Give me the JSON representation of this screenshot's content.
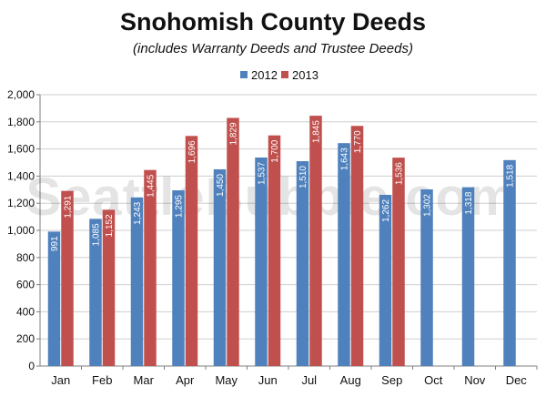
{
  "chart_data": {
    "type": "bar",
    "title": "Snohomish County Deeds",
    "subtitle": "(includes Warranty Deeds and Trustee Deeds)",
    "categories": [
      "Jan",
      "Feb",
      "Mar",
      "Apr",
      "May",
      "Jun",
      "Jul",
      "Aug",
      "Sep",
      "Oct",
      "Nov",
      "Dec"
    ],
    "series": [
      {
        "name": "2012",
        "color": "#4f81bd",
        "values": [
          991,
          1085,
          1243,
          1295,
          1450,
          1537,
          1510,
          1643,
          1262,
          1302,
          1318,
          1518
        ]
      },
      {
        "name": "2013",
        "color": "#c0504d",
        "values": [
          1291,
          1152,
          1445,
          1696,
          1829,
          1700,
          1845,
          1770,
          1536,
          null,
          null,
          null
        ]
      }
    ],
    "data_labels": {
      "2012": [
        "991",
        "1,085",
        "1,243",
        "1,295",
        "1,450",
        "1,537",
        "1,510",
        "1,643",
        "1,262",
        "1,302",
        "1,318",
        "1,518"
      ],
      "2013": [
        "1,291",
        "1,152",
        "1,445",
        "1,696",
        "1,829",
        "1,700",
        "1,845",
        "1,770",
        "1,536",
        "",
        "",
        ""
      ]
    },
    "yticks": [
      "0",
      "200",
      "400",
      "600",
      "800",
      "1,000",
      "1,200",
      "1,400",
      "1,600",
      "1,800",
      "2,000"
    ],
    "ylim": [
      0,
      2000
    ],
    "grid": true,
    "legend": "top-center",
    "watermark": "SeattleBubble.com"
  }
}
